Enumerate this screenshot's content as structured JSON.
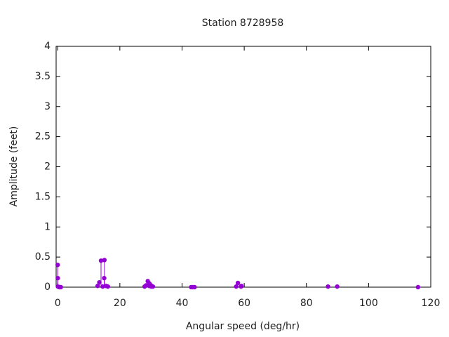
{
  "chart_data": {
    "type": "stem",
    "title": "Station 8728958",
    "xlabel": "Angular speed (deg/hr)",
    "ylabel": "Amplitude (feet)",
    "color": "#9400d3",
    "series": [
      {
        "x": [
          0,
          0.04,
          0.08,
          0.54,
          1.02,
          12.85,
          13.4,
          13.94,
          14.49,
          14.96,
          15.04,
          15.59,
          16.14,
          27.97,
          28.44,
          28.98,
          29.46,
          29.53,
          30.0,
          30.08,
          30.63,
          42.93,
          43.48,
          44.03,
          57.42,
          57.97,
          58.98,
          59.07,
          86.95,
          89.9,
          115.9
        ],
        "values": [
          0.37,
          0.15,
          0.01,
          0.0,
          0.0,
          0.02,
          0.08,
          0.44,
          0.01,
          0.15,
          0.45,
          0.02,
          0.01,
          0.01,
          0.03,
          0.1,
          0.02,
          0.06,
          0.03,
          0.01,
          0.01,
          0.0,
          0.0,
          0.0,
          0.01,
          0.07,
          0.01,
          0.02,
          0.01,
          0.01,
          0.0
        ]
      }
    ],
    "xlim": [
      -0.5,
      120
    ],
    "ylim": [
      0,
      4
    ],
    "xticks": [
      0,
      20,
      40,
      60,
      80,
      100,
      120
    ],
    "yticks": [
      0,
      0.5,
      1,
      1.5,
      2,
      2.5,
      3,
      3.5,
      4
    ]
  }
}
